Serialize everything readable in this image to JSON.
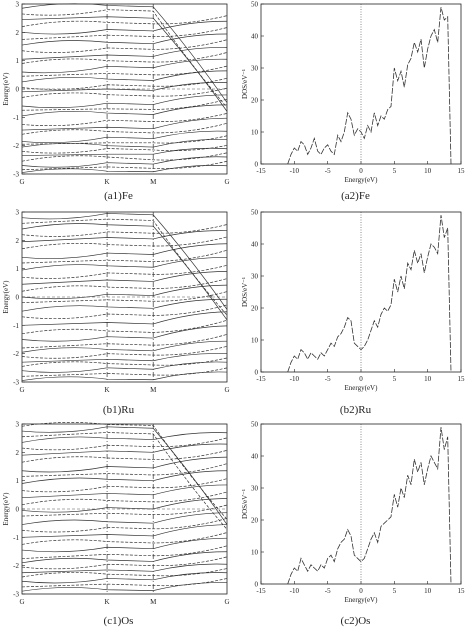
{
  "chart_data": [
    {
      "id": "a1",
      "type": "line",
      "kind": "band_structure",
      "caption": "(a1)Fe",
      "ylabel": "Energy(eV)",
      "ylim": [
        -3,
        3
      ],
      "y_ticks": [
        "-3",
        "-2",
        "-1",
        "0",
        "1",
        "2",
        "3"
      ],
      "x_ticks": [
        "G",
        "K",
        "M",
        "G"
      ],
      "bands_start": [
        -2.95,
        -2.85,
        -2.7,
        -2.55,
        -2.35,
        -2.2,
        -2.05,
        -1.95,
        -1.85,
        -1.6,
        -1.45,
        -1.25,
        -0.95,
        -0.75,
        -0.6,
        -0.3,
        -0.1,
        0.05,
        0.25,
        0.45,
        0.6,
        0.9,
        1.05,
        1.35,
        1.55,
        1.75,
        2.0,
        2.2,
        2.45,
        2.65,
        2.85
      ],
      "bands_k": [
        -2.9,
        -2.75,
        -2.6,
        -2.4,
        -2.3,
        -2.1,
        -2.0,
        -1.9,
        -1.7,
        -1.5,
        -1.35,
        -1.1,
        -0.85,
        -0.7,
        -0.5,
        -0.2,
        0.0,
        0.15,
        0.35,
        0.55,
        0.8,
        1.0,
        1.2,
        1.45,
        1.65,
        1.9,
        2.1,
        2.35,
        2.55,
        2.8,
        2.95
      ],
      "bands_m": [
        -2.92,
        -2.8,
        -2.65,
        -2.5,
        -2.3,
        -2.15,
        -2.05,
        -1.9,
        -1.75,
        -1.55,
        -1.4,
        -1.15,
        -0.9,
        -0.72,
        -0.55,
        -0.25,
        -0.05,
        0.1,
        0.3,
        0.5,
        0.75,
        0.95,
        1.15,
        1.4,
        1.6,
        1.85,
        2.05,
        2.3,
        2.5,
        2.75,
        2.9
      ]
    },
    {
      "id": "a2",
      "type": "line",
      "kind": "density_of_states",
      "caption": "(a2)Fe",
      "xlabel": "Energy(eV)",
      "ylabel": "DOS/eV⁻¹",
      "xlim": [
        -15,
        15
      ],
      "ylim": [
        0,
        50
      ],
      "x_ticks": [
        -15,
        -10,
        -5,
        0,
        5,
        10,
        15
      ],
      "y_ticks": [
        0,
        10,
        20,
        30,
        40,
        50
      ],
      "x": [
        -11,
        -10.5,
        -10,
        -9.5,
        -9,
        -8.5,
        -8,
        -7.5,
        -7,
        -6.5,
        -6,
        -5.5,
        -5,
        -4.5,
        -4,
        -3.5,
        -3,
        -2.5,
        -2,
        -1.5,
        -1,
        -0.5,
        0,
        0.5,
        1,
        1.5,
        2,
        2.5,
        3,
        3.5,
        4,
        4.5,
        5,
        5.5,
        6,
        6.5,
        7,
        7.5,
        8,
        8.5,
        9,
        9.5,
        10,
        10.5,
        11,
        11.5,
        12,
        12.5,
        13,
        13.5
      ],
      "y": [
        0,
        3,
        5,
        4,
        7,
        6,
        3,
        5,
        8,
        4,
        3,
        5,
        6,
        4,
        3,
        9,
        7,
        10,
        16,
        14,
        9,
        11,
        10,
        8,
        12,
        10,
        16,
        12,
        15,
        14,
        17,
        18,
        30,
        26,
        29,
        24,
        31,
        33,
        38,
        35,
        39,
        30,
        36,
        40,
        42,
        38,
        49,
        45,
        46,
        0
      ]
    },
    {
      "id": "b1",
      "type": "line",
      "kind": "band_structure",
      "caption": "(b1)Ru",
      "ylabel": "Energy(eV)",
      "ylim": [
        -3,
        3
      ],
      "y_ticks": [
        "-3",
        "-2",
        "-1",
        "0",
        "1",
        "2",
        "3"
      ],
      "x_ticks": [
        "G",
        "K",
        "M",
        "G"
      ],
      "bands_start": [
        -2.95,
        -2.8,
        -2.6,
        -2.45,
        -2.3,
        -2.1,
        -1.95,
        -1.8,
        -1.5,
        -1.3,
        -1.0,
        -0.7,
        -0.5,
        -0.2,
        0.0,
        0.2,
        0.45,
        0.7,
        0.95,
        1.2,
        1.4,
        1.7,
        1.95,
        2.2,
        2.4,
        2.6,
        2.8
      ],
      "bands_k": [
        -2.9,
        -2.7,
        -2.5,
        -2.35,
        -2.2,
        -2.0,
        -1.85,
        -1.65,
        -1.4,
        -1.2,
        -0.9,
        -0.6,
        -0.35,
        -0.1,
        0.1,
        0.35,
        0.6,
        0.85,
        1.1,
        1.3,
        1.55,
        1.85,
        2.1,
        2.3,
        2.55,
        2.75,
        2.95
      ],
      "bands_m": [
        -2.92,
        -2.75,
        -2.55,
        -2.4,
        -2.25,
        -2.05,
        -1.9,
        -1.7,
        -1.45,
        -1.25,
        -0.95,
        -0.65,
        -0.4,
        -0.15,
        0.05,
        0.3,
        0.55,
        0.8,
        1.05,
        1.25,
        1.5,
        1.8,
        2.05,
        2.25,
        2.5,
        2.7,
        2.9
      ]
    },
    {
      "id": "b2",
      "type": "line",
      "kind": "density_of_states",
      "caption": "(b2)Ru",
      "xlabel": "Energy(eV)",
      "ylabel": "DOS/eV⁻¹",
      "xlim": [
        -15,
        15
      ],
      "ylim": [
        0,
        50
      ],
      "x_ticks": [
        -15,
        -10,
        -5,
        0,
        5,
        10,
        15
      ],
      "y_ticks": [
        0,
        10,
        20,
        30,
        40,
        50
      ],
      "x": [
        -11,
        -10.5,
        -10,
        -9.5,
        -9,
        -8.5,
        -8,
        -7.5,
        -7,
        -6.5,
        -6,
        -5.5,
        -5,
        -4.5,
        -4,
        -3.5,
        -3,
        -2.5,
        -2,
        -1.5,
        -1,
        -0.5,
        0,
        0.5,
        1,
        1.5,
        2,
        2.5,
        3,
        3.5,
        4,
        4.5,
        5,
        5.5,
        6,
        6.5,
        7,
        7.5,
        8,
        8.5,
        9,
        9.5,
        10,
        10.5,
        11,
        11.5,
        12,
        12.5,
        13,
        13.5
      ],
      "y": [
        0,
        3,
        5,
        4,
        7,
        6,
        4,
        6,
        5,
        4,
        6,
        5,
        7,
        9,
        8,
        11,
        12,
        14,
        17,
        16,
        9,
        8,
        7,
        8,
        10,
        13,
        16,
        14,
        18,
        20,
        19,
        21,
        29,
        25,
        30,
        26,
        34,
        32,
        38,
        34,
        37,
        31,
        36,
        40,
        39,
        37,
        49,
        42,
        45,
        0
      ]
    },
    {
      "id": "c1",
      "type": "line",
      "kind": "band_structure",
      "caption": "(c1)Os",
      "ylabel": "Energy(eV)",
      "ylim": [
        -3,
        3
      ],
      "y_ticks": [
        "-3",
        "-2",
        "-1",
        "0",
        "1",
        "2",
        "3"
      ],
      "x_ticks": [
        "G",
        "K",
        "M",
        "G"
      ],
      "bands_start": [
        -2.9,
        -2.75,
        -2.55,
        -2.4,
        -2.25,
        -2.05,
        -1.9,
        -1.75,
        -1.45,
        -1.25,
        -1.0,
        -0.75,
        -0.55,
        -0.25,
        -0.05,
        0.15,
        0.4,
        0.65,
        0.9,
        1.15,
        1.35,
        1.65,
        1.9,
        2.15,
        2.35,
        2.55,
        2.75,
        2.92
      ],
      "bands_k": [
        -2.85,
        -2.65,
        -2.45,
        -2.3,
        -2.15,
        -1.95,
        -1.8,
        -1.6,
        -1.35,
        -1.15,
        -0.9,
        -0.65,
        -0.45,
        -0.15,
        0.05,
        0.3,
        0.55,
        0.8,
        1.05,
        1.25,
        1.5,
        1.8,
        2.05,
        2.25,
        2.5,
        2.7,
        2.9,
        2.98
      ],
      "bands_m": [
        -2.88,
        -2.7,
        -2.5,
        -2.35,
        -2.2,
        -2.0,
        -1.85,
        -1.65,
        -1.4,
        -1.2,
        -0.95,
        -0.7,
        -0.5,
        -0.2,
        0.0,
        0.25,
        0.5,
        0.75,
        1.0,
        1.2,
        1.45,
        1.75,
        2.0,
        2.2,
        2.45,
        2.65,
        2.85,
        2.95
      ]
    },
    {
      "id": "c2",
      "type": "line",
      "kind": "density_of_states",
      "caption": "(c2)Os",
      "xlabel": "Energy(eV)",
      "ylabel": "DOS/eV⁻¹",
      "xlim": [
        -15,
        15
      ],
      "ylim": [
        0,
        50
      ],
      "x_ticks": [
        -15,
        -10,
        -5,
        0,
        5,
        10,
        15
      ],
      "y_ticks": [
        0,
        10,
        20,
        30,
        40,
        50
      ],
      "x": [
        -11,
        -10.5,
        -10,
        -9.5,
        -9,
        -8.5,
        -8,
        -7.5,
        -7,
        -6.5,
        -6,
        -5.5,
        -5,
        -4.5,
        -4,
        -3.5,
        -3,
        -2.5,
        -2,
        -1.5,
        -1,
        -0.5,
        0,
        0.5,
        1,
        1.5,
        2,
        2.5,
        3,
        3.5,
        4,
        4.5,
        5,
        5.5,
        6,
        6.5,
        7,
        7.5,
        8,
        8.5,
        9,
        9.5,
        10,
        10.5,
        11,
        11.5,
        12,
        12.5,
        13,
        13.5
      ],
      "y": [
        0,
        3,
        5,
        4,
        8,
        6,
        4,
        6,
        5,
        4,
        6,
        5,
        8,
        9,
        7,
        11,
        13,
        14,
        17,
        15,
        9,
        8,
        7,
        8,
        11,
        14,
        16,
        13,
        18,
        19,
        20,
        21,
        28,
        24,
        30,
        27,
        34,
        31,
        39,
        35,
        38,
        31,
        36,
        40,
        38,
        36,
        49,
        42,
        46,
        0
      ]
    }
  ]
}
